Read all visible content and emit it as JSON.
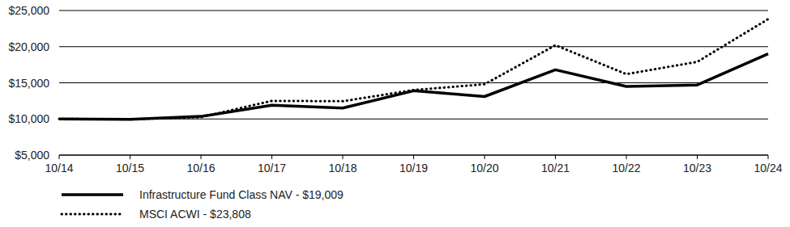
{
  "chart_data": {
    "type": "line",
    "categories": [
      "10/14",
      "10/15",
      "10/16",
      "10/17",
      "10/18",
      "10/19",
      "10/20",
      "10/21",
      "10/22",
      "10/23",
      "10/24"
    ],
    "series": [
      {
        "name": "Infrastructure Fund Class NAV - $19,009",
        "color": "#000000",
        "line_style": "solid",
        "values": [
          10000,
          9950,
          10350,
          11900,
          11500,
          13900,
          13100,
          16800,
          14500,
          14700,
          19009
        ]
      },
      {
        "name": "MSCI ACWI - $23,808",
        "color": "#000000",
        "line_style": "dotted",
        "values": [
          10000,
          9950,
          10250,
          12500,
          12450,
          14000,
          14800,
          20200,
          16200,
          17900,
          23808
        ]
      }
    ],
    "ylim": [
      5000,
      25000
    ],
    "yticks": [
      {
        "value": 5000,
        "label": "$5,000"
      },
      {
        "value": 10000,
        "label": "$10,000"
      },
      {
        "value": 15000,
        "label": "$15,000"
      },
      {
        "value": 20000,
        "label": "$20,000"
      },
      {
        "value": 25000,
        "label": "$25,000"
      }
    ],
    "grid": true,
    "legend": "bottom"
  }
}
